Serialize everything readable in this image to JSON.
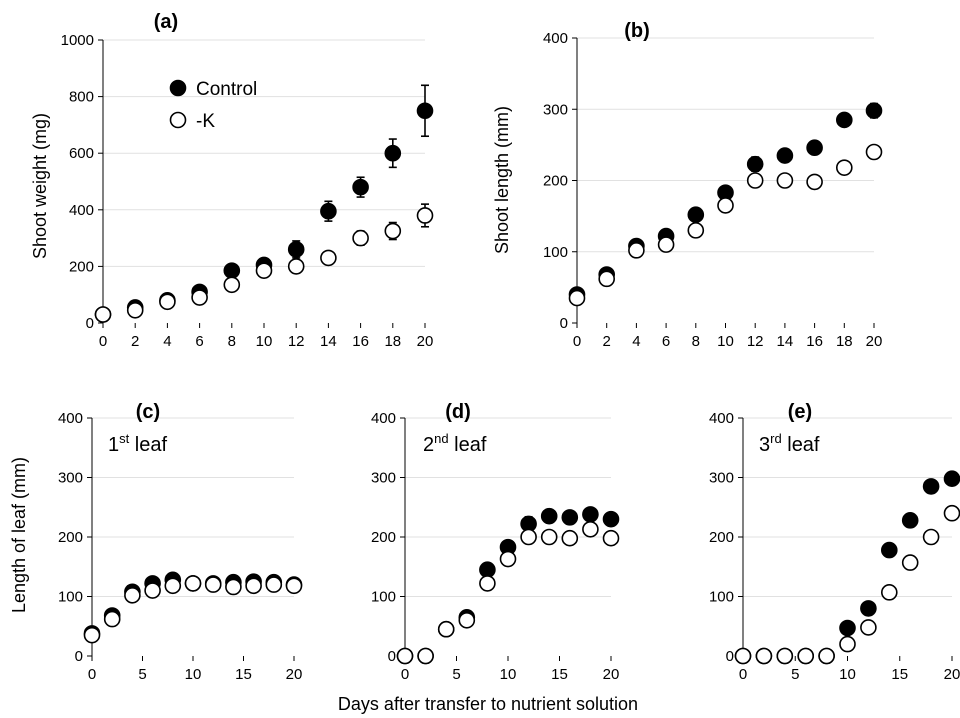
{
  "figure": {
    "xlabel": "Days after transfer to nutrient solution"
  },
  "legend": {
    "items": [
      {
        "label": "Control",
        "marker": "filled"
      },
      {
        "label": "-K",
        "marker": "open"
      }
    ]
  },
  "chart_data": [
    {
      "panel": "a",
      "title": "(a)",
      "type": "scatter",
      "ylabel": "Shoot weight (mg)",
      "xlim": [
        0,
        20
      ],
      "ylim": [
        0,
        1000
      ],
      "xticks": [
        0,
        2,
        4,
        6,
        8,
        10,
        12,
        14,
        16,
        18,
        20
      ],
      "yticks": [
        0,
        200,
        400,
        600,
        800,
        1000
      ],
      "grid": true,
      "legend_position": "top-left",
      "series": [
        {
          "name": "Control",
          "marker": "filled",
          "x": [
            0,
            2,
            4,
            6,
            8,
            10,
            12,
            14,
            16,
            18,
            20
          ],
          "y": [
            30,
            55,
            80,
            110,
            185,
            205,
            260,
            395,
            480,
            600,
            750
          ],
          "err": [
            5,
            8,
            10,
            12,
            15,
            15,
            30,
            35,
            35,
            50,
            90
          ]
        },
        {
          "name": "-K",
          "marker": "open",
          "x": [
            0,
            2,
            4,
            6,
            8,
            10,
            12,
            14,
            16,
            18,
            20
          ],
          "y": [
            30,
            45,
            75,
            90,
            135,
            185,
            200,
            230,
            300,
            325,
            380
          ],
          "err": [
            5,
            6,
            8,
            10,
            10,
            12,
            15,
            20,
            25,
            30,
            40
          ]
        }
      ]
    },
    {
      "panel": "b",
      "title": "(b)",
      "type": "scatter",
      "ylabel": "Shoot length (mm)",
      "xlim": [
        0,
        20
      ],
      "ylim": [
        0,
        400
      ],
      "xticks": [
        0,
        2,
        4,
        6,
        8,
        10,
        12,
        14,
        16,
        18,
        20
      ],
      "yticks": [
        0,
        100,
        200,
        300,
        400
      ],
      "grid": true,
      "series": [
        {
          "name": "Control",
          "marker": "filled",
          "x": [
            0,
            2,
            4,
            6,
            8,
            10,
            12,
            14,
            16,
            18,
            20
          ],
          "y": [
            40,
            68,
            108,
            122,
            152,
            183,
            223,
            235,
            246,
            285,
            298
          ],
          "err": [
            3,
            4,
            5,
            5,
            6,
            6,
            10,
            6,
            6,
            7,
            10
          ]
        },
        {
          "name": "-K",
          "marker": "open",
          "x": [
            0,
            2,
            4,
            6,
            8,
            10,
            12,
            14,
            16,
            18,
            20
          ],
          "y": [
            35,
            62,
            102,
            110,
            130,
            165,
            200,
            200,
            198,
            218,
            240
          ],
          "err": [
            3,
            4,
            5,
            5,
            6,
            8,
            6,
            6,
            5,
            6,
            6
          ]
        }
      ]
    },
    {
      "panel": "c",
      "title": "(c)",
      "type": "scatter",
      "annotation": {
        "base": "1",
        "sup": "st",
        "rest": " leaf"
      },
      "ylabel": "Length of leaf (mm)",
      "xlim": [
        0,
        20
      ],
      "ylim": [
        0,
        400
      ],
      "xticks": [
        0,
        5,
        10,
        15,
        20
      ],
      "yticks": [
        0,
        100,
        200,
        300,
        400
      ],
      "grid": true,
      "series": [
        {
          "name": "Control",
          "marker": "filled",
          "x": [
            0,
            2,
            4,
            6,
            8,
            10,
            12,
            14,
            16,
            18,
            20
          ],
          "y": [
            38,
            68,
            108,
            122,
            128,
            122,
            122,
            124,
            125,
            124,
            120
          ],
          "err": [
            3,
            4,
            5,
            5,
            5,
            5,
            5,
            5,
            5,
            5,
            5
          ]
        },
        {
          "name": "-K",
          "marker": "open",
          "x": [
            0,
            2,
            4,
            6,
            8,
            10,
            12,
            14,
            16,
            18,
            20
          ],
          "y": [
            35,
            62,
            102,
            110,
            118,
            122,
            120,
            116,
            118,
            120,
            118
          ],
          "err": [
            3,
            4,
            5,
            5,
            5,
            5,
            5,
            5,
            5,
            5,
            5
          ]
        }
      ]
    },
    {
      "panel": "d",
      "title": "(d)",
      "type": "scatter",
      "annotation": {
        "base": "2",
        "sup": "nd",
        "rest": " leaf"
      },
      "ylabel": "",
      "xlim": [
        0,
        20
      ],
      "ylim": [
        0,
        400
      ],
      "xticks": [
        0,
        5,
        10,
        15,
        20
      ],
      "yticks": [
        0,
        100,
        200,
        300,
        400
      ],
      "grid": true,
      "series": [
        {
          "name": "Control",
          "marker": "filled",
          "x": [
            0,
            2,
            4,
            6,
            8,
            10,
            12,
            14,
            16,
            18,
            20
          ],
          "y": [
            0,
            0,
            45,
            65,
            145,
            183,
            222,
            235,
            233,
            238,
            230
          ],
          "err": [
            0,
            0,
            5,
            5,
            10,
            6,
            12,
            6,
            8,
            6,
            10
          ]
        },
        {
          "name": "-K",
          "marker": "open",
          "x": [
            0,
            2,
            4,
            6,
            8,
            10,
            12,
            14,
            16,
            18,
            20
          ],
          "y": [
            0,
            0,
            45,
            60,
            122,
            163,
            200,
            200,
            198,
            213,
            198
          ],
          "err": [
            0,
            0,
            5,
            6,
            8,
            8,
            6,
            6,
            5,
            10,
            6
          ]
        }
      ]
    },
    {
      "panel": "e",
      "title": "(e)",
      "type": "scatter",
      "annotation": {
        "base": "3",
        "sup": "rd",
        "rest": " leaf"
      },
      "ylabel": "",
      "xlim": [
        0,
        20
      ],
      "ylim": [
        0,
        400
      ],
      "xticks": [
        0,
        5,
        10,
        15,
        20
      ],
      "yticks": [
        0,
        100,
        200,
        300,
        400
      ],
      "grid": true,
      "series": [
        {
          "name": "Control",
          "marker": "filled",
          "x": [
            0,
            2,
            4,
            6,
            8,
            10,
            12,
            14,
            16,
            18,
            20
          ],
          "y": [
            0,
            0,
            0,
            0,
            0,
            47,
            80,
            178,
            228,
            285,
            298
          ],
          "err": [
            0,
            0,
            0,
            0,
            0,
            6,
            10,
            10,
            8,
            8,
            8
          ]
        },
        {
          "name": "-K",
          "marker": "open",
          "x": [
            0,
            2,
            4,
            6,
            8,
            10,
            12,
            14,
            16,
            18,
            20
          ],
          "y": [
            0,
            0,
            0,
            0,
            0,
            20,
            48,
            107,
            157,
            200,
            240
          ],
          "err": [
            0,
            0,
            0,
            0,
            0,
            10,
            8,
            8,
            10,
            10,
            6
          ]
        }
      ]
    }
  ]
}
